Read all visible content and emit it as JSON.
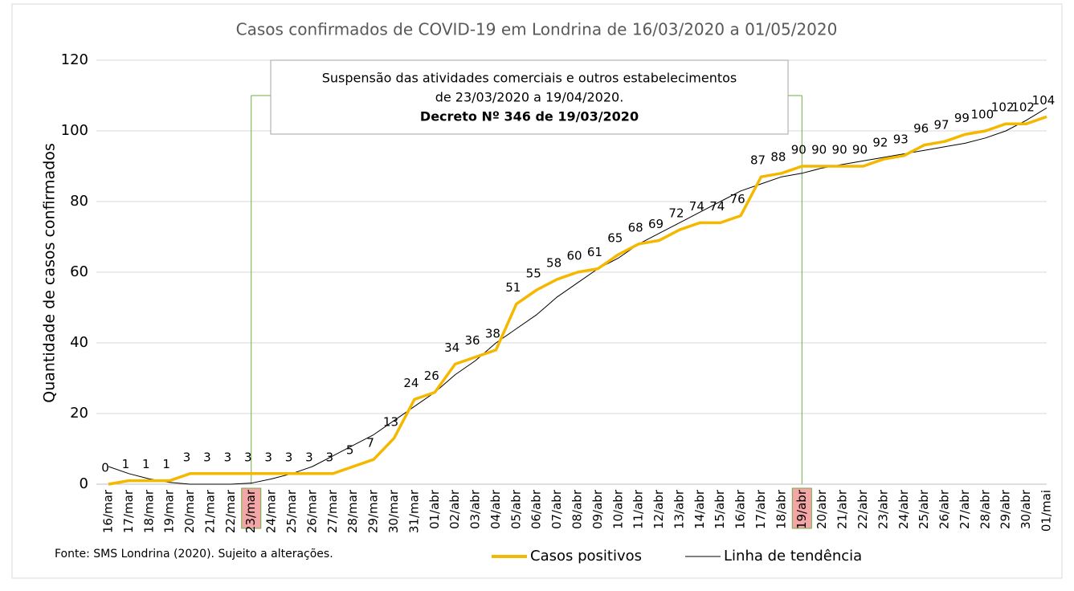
{
  "chart_data": {
    "type": "line",
    "title": "Casos confirmados de COVID-19 em Londrina de 16/03/2020 a 01/05/2020",
    "y_label": "Quantidade de casos confirmados",
    "categories": [
      "16/mar",
      "17/mar",
      "18/mar",
      "19/mar",
      "20/mar",
      "21/mar",
      "22/mar",
      "23/mar",
      "24/mar",
      "25/mar",
      "26/mar",
      "27/mar",
      "28/mar",
      "29/mar",
      "30/mar",
      "31/mar",
      "01/abr",
      "02/abr",
      "03/abr",
      "04/abr",
      "05/abr",
      "06/abr",
      "07/abr",
      "08/abr",
      "09/abr",
      "10/abr",
      "11/abr",
      "12/abr",
      "13/abr",
      "14/abr",
      "15/abr",
      "16/abr",
      "17/abr",
      "18/abr",
      "19/abr",
      "20/abr",
      "21/abr",
      "22/abr",
      "23/abr",
      "24/abr",
      "25/abr",
      "26/abr",
      "27/abr",
      "28/abr",
      "29/abr",
      "30/abr",
      "01/mai"
    ],
    "series": [
      {
        "name": "Casos positivos",
        "color": "#f5b800",
        "data_labels": true,
        "values": [
          0,
          1,
          1,
          1,
          3,
          3,
          3,
          3,
          3,
          3,
          3,
          3,
          5,
          7,
          13,
          24,
          26,
          34,
          36,
          38,
          51,
          55,
          58,
          60,
          61,
          65,
          68,
          69,
          72,
          74,
          74,
          76,
          87,
          88,
          90,
          90,
          90,
          90,
          92,
          93,
          96,
          97,
          99,
          100,
          102,
          102,
          104
        ]
      },
      {
        "name": "Linha de tendência",
        "color": "#000000",
        "data_labels": false,
        "values": [
          5,
          3,
          1.5,
          0.5,
          0,
          0,
          0,
          0.3,
          1.5,
          3,
          5,
          8,
          11,
          14,
          18,
          22,
          26,
          31,
          35,
          40,
          44,
          48,
          53,
          57,
          61,
          64,
          68,
          71,
          74,
          77,
          80,
          83,
          85,
          87,
          88,
          89.5,
          90.5,
          91.5,
          92.5,
          93.5,
          94.5,
          95.5,
          96.5,
          98,
          100,
          103,
          106.5
        ]
      }
    ],
    "ylim": [
      0,
      120
    ],
    "yticks": [
      0,
      20,
      40,
      60,
      80,
      100,
      120
    ],
    "grid": true,
    "highlighted_categories": [
      "23/mar",
      "19/abr"
    ],
    "marker_top": 110,
    "annotation": {
      "lines": [
        "Suspensão das atividades comerciais e outros estabelecimentos",
        "de 23/03/2020 a 19/04/2020."
      ],
      "bold_line": "Decreto Nº 346 de 19/03/2020"
    },
    "source": "Fonte: SMS Londrina (2020). Sujeito a alterações.",
    "legend": "bottom"
  }
}
